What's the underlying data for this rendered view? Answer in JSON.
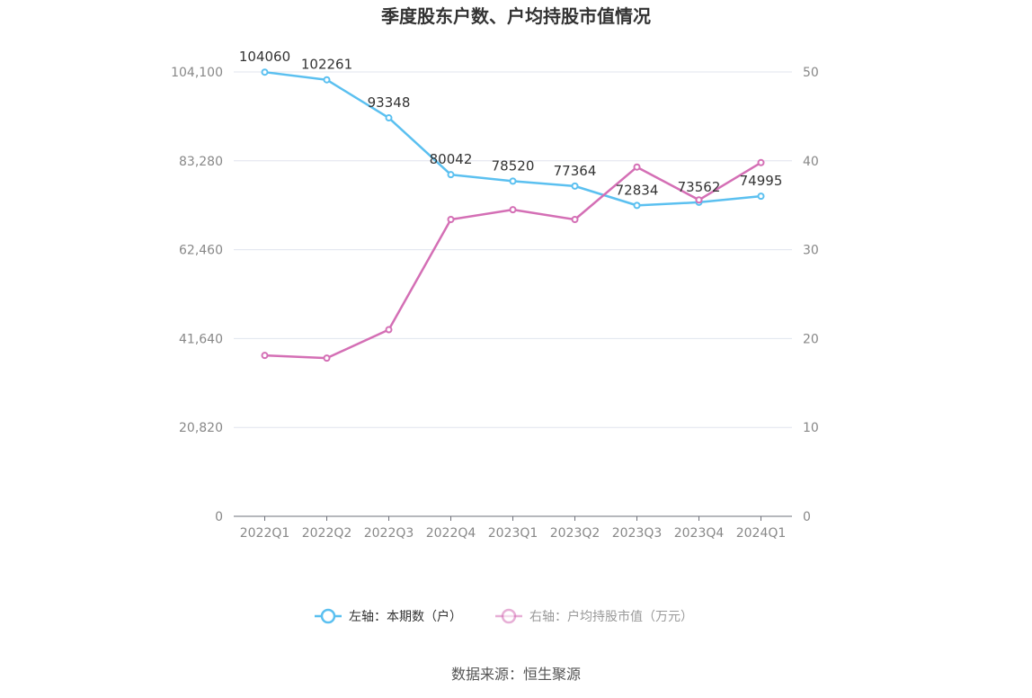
{
  "chart_data": {
    "type": "line",
    "title": "季度股东户数、户均持股市值情况",
    "categories": [
      "2022Q1",
      "2022Q2",
      "2022Q3",
      "2022Q4",
      "2023Q1",
      "2023Q2",
      "2023Q3",
      "2023Q4",
      "2024Q1"
    ],
    "left_axis": {
      "ticks": [
        "0",
        "20,820",
        "41,640",
        "62,460",
        "83,280",
        "104,100"
      ],
      "ylim": [
        0,
        104100
      ]
    },
    "right_axis": {
      "ticks": [
        "0",
        "10",
        "20",
        "30",
        "40",
        "50"
      ],
      "ylim": [
        0,
        50
      ]
    },
    "series": [
      {
        "name": "左轴：本期数（户）",
        "axis": "left",
        "color": "#5bc0f0",
        "values": [
          104060,
          102261,
          93348,
          80042,
          78520,
          77364,
          72834,
          73562,
          74995
        ],
        "labels": [
          "104060",
          "102261",
          "93348",
          "80042",
          "78520",
          "77364",
          "72834",
          "73562",
          "74995"
        ]
      },
      {
        "name": "右轴：户均持股市值（万元）",
        "axis": "right",
        "color": "#d46fb5",
        "values": [
          18.1,
          17.8,
          21.0,
          33.4,
          34.5,
          33.4,
          39.3,
          35.6,
          39.8
        ]
      }
    ],
    "legend_position": "bottom-center",
    "grid": true
  },
  "source": "数据来源：恒生聚源"
}
